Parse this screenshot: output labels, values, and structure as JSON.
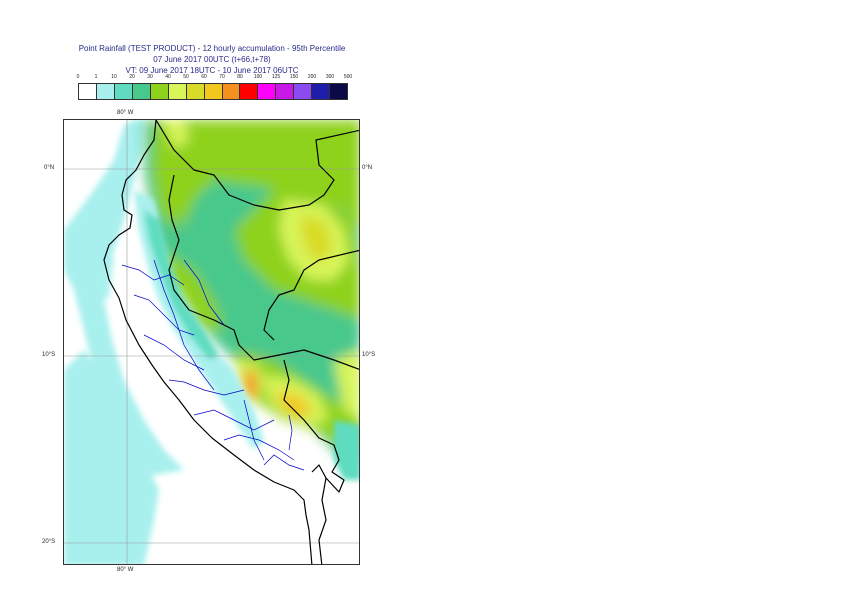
{
  "title": {
    "line1": "Point Rainfall (TEST PRODUCT) - 12 hourly accumulation - 95th Percentile",
    "line2": "07 June 2017 00UTC (t+66,t+78)",
    "line3": "VT: 09 June 2017 18UTC - 10 June 2017 06UTC"
  },
  "legend": {
    "ticks": [
      "0",
      "1",
      "10",
      "20",
      "30",
      "40",
      "50",
      "60",
      "70",
      "80",
      "100",
      "125",
      "150",
      "200",
      "300",
      "500"
    ],
    "colors": [
      "#ffffff",
      "#a8f0ee",
      "#5fdcc0",
      "#48c88c",
      "#8ed21e",
      "#d8f55a",
      "#d8dc28",
      "#f2c81e",
      "#f5901e",
      "#ff0000",
      "#ff00ff",
      "#c818e6",
      "#8a4cf0",
      "#1e1eaa",
      "#0a0a46"
    ]
  },
  "axes": {
    "lon_top": "80° W",
    "lon_bottom": "80° W",
    "lat_left": [
      "0°N",
      "10°S",
      "20°S"
    ],
    "lat_right": [
      "0°N",
      "10°S"
    ]
  }
}
